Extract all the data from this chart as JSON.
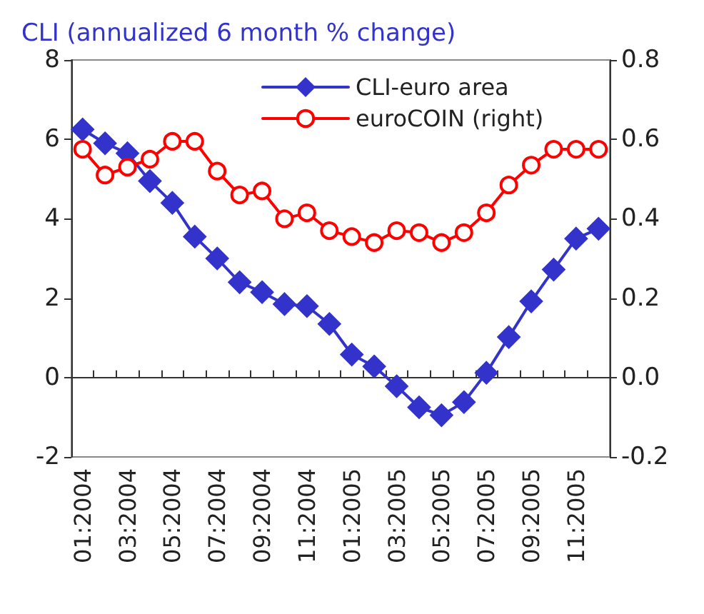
{
  "chart_data": {
    "type": "line",
    "title": "CLI (annualized 6 month % change)",
    "categories": [
      "01:2004",
      null,
      "03:2004",
      null,
      "05:2004",
      null,
      "07:2004",
      null,
      "09:2004",
      null,
      "11:2004",
      null,
      "01:2005",
      null,
      "03:2005",
      null,
      "05:2005",
      null,
      "07:2005",
      null,
      "09:2005",
      null,
      "11:2005",
      null
    ],
    "series": [
      {
        "name": "CLI-euro area",
        "color": "#3333cc",
        "marker": "diamond",
        "values": [
          6.25,
          5.9,
          5.65,
          4.95,
          4.4,
          3.55,
          3.0,
          2.4,
          2.15,
          1.85,
          1.8,
          1.35,
          0.58,
          0.28,
          -0.22,
          -0.75,
          -0.95,
          -0.62,
          0.12,
          1.02,
          1.92,
          2.72,
          3.5,
          3.75
        ]
      },
      {
        "name": "euroCOIN (right)",
        "color": "#ff0000",
        "marker": "circle",
        "axis": "y2",
        "values": [
          0.575,
          0.51,
          0.53,
          0.55,
          0.595,
          0.595,
          0.52,
          0.46,
          0.47,
          0.4,
          0.415,
          0.37,
          0.355,
          0.34,
          0.37,
          0.365,
          0.34,
          0.365,
          0.415,
          0.485,
          0.535,
          0.575,
          0.575,
          0.575
        ]
      }
    ],
    "ylim": [
      -2,
      8
    ],
    "yticks": [
      -2,
      0,
      2,
      4,
      6,
      8
    ],
    "y2lim": [
      -0.2,
      0.8
    ],
    "y2ticks": [
      -0.2,
      {
        "value": 0,
        "label": "0.0"
      },
      0.2,
      0.4,
      0.6,
      0.8
    ],
    "legend": "top",
    "line_style": "solid"
  }
}
